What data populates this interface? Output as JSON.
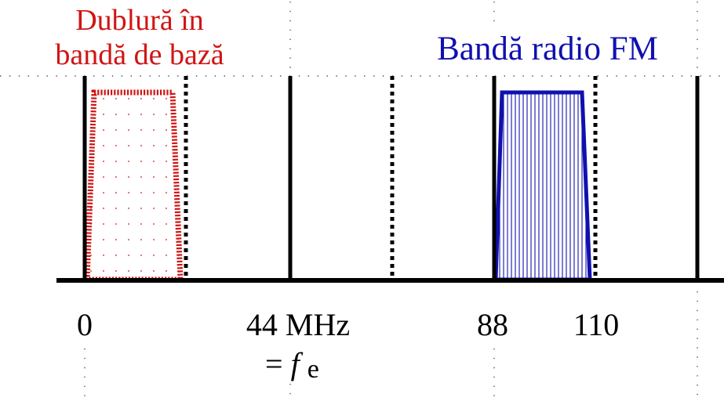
{
  "annotations": {
    "alias_label_line1": "Dublură în",
    "alias_label_line2": "bandă de bază",
    "fm_label": "Bandă radio FM"
  },
  "axis": {
    "ticks": [
      {
        "id": "tick-0",
        "text": "0"
      },
      {
        "id": "tick-44",
        "text": "44 MHz"
      },
      {
        "id": "tick-88",
        "text": "88"
      },
      {
        "id": "tick-110",
        "text": "110"
      }
    ],
    "fe_equals": "=",
    "fe_symbol": "f",
    "fe_subscript": "e"
  },
  "colors": {
    "alias_red": "#d11414",
    "fm_blue": "#1010b0",
    "axis_black": "#000000",
    "guide_gray": "#555555"
  }
}
